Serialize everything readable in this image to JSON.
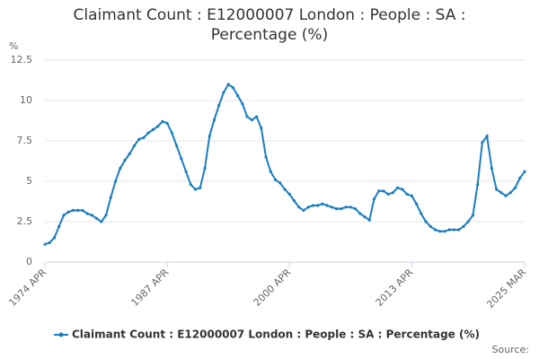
{
  "chart_data": {
    "type": "line",
    "title": "Claimant Count : E12000007 London : People : SA : Percentage (%)",
    "y_label": "%",
    "source": "Source:",
    "categories": [
      "1974 APR",
      null,
      null,
      null,
      null,
      null,
      null,
      null,
      null,
      null,
      null,
      null,
      null,
      null,
      null,
      null,
      null,
      null,
      null,
      null,
      null,
      null,
      null,
      null,
      null,
      null,
      "1987 APR",
      null,
      null,
      null,
      null,
      null,
      null,
      null,
      null,
      null,
      null,
      null,
      null,
      null,
      null,
      null,
      null,
      null,
      null,
      null,
      null,
      null,
      null,
      null,
      null,
      null,
      "2000 APR",
      null,
      null,
      null,
      null,
      null,
      null,
      null,
      null,
      null,
      null,
      null,
      null,
      null,
      null,
      null,
      null,
      null,
      null,
      null,
      null,
      null,
      null,
      null,
      null,
      null,
      "2013 APR",
      null,
      null,
      null,
      null,
      null,
      null,
      null,
      null,
      null,
      null,
      null,
      null,
      null,
      null,
      null,
      null,
      null,
      null,
      null,
      null,
      null,
      null,
      null,
      "2025 MAR"
    ],
    "series": [
      {
        "name": "Claimant Count : E12000007 London : People : SA : Percentage (%)",
        "color": "#1a7dc0",
        "values": [
          1.1,
          1.2,
          1.5,
          2.2,
          2.9,
          3.1,
          3.2,
          3.2,
          3.2,
          3.0,
          2.9,
          2.7,
          2.5,
          2.9,
          4.0,
          5.0,
          5.8,
          6.3,
          6.7,
          7.2,
          7.6,
          7.7,
          8.0,
          8.2,
          8.4,
          8.7,
          8.6,
          8.0,
          7.2,
          6.4,
          5.6,
          4.8,
          4.5,
          4.6,
          5.8,
          7.8,
          8.8,
          9.7,
          10.5,
          11.0,
          10.8,
          10.3,
          9.8,
          9.0,
          8.8,
          9.0,
          8.3,
          6.5,
          5.6,
          5.1,
          4.9,
          4.5,
          4.2,
          3.8,
          3.4,
          3.2,
          3.4,
          3.5,
          3.5,
          3.6,
          3.5,
          3.4,
          3.3,
          3.3,
          3.4,
          3.4,
          3.3,
          3.0,
          2.8,
          2.6,
          3.9,
          4.4,
          4.4,
          4.2,
          4.3,
          4.6,
          4.5,
          4.2,
          4.1,
          3.6,
          3.0,
          2.5,
          2.2,
          2.0,
          1.9,
          1.9,
          2.0,
          2.0,
          2.0,
          2.2,
          2.5,
          2.9,
          4.8,
          7.4,
          7.8,
          5.8,
          4.5,
          4.3,
          4.1,
          4.3,
          4.6,
          5.2,
          5.6
        ]
      }
    ],
    "ylim": [
      0,
      12.5
    ],
    "yticks": [
      0,
      2.5,
      5,
      7.5,
      10,
      12.5
    ],
    "grid": true
  }
}
